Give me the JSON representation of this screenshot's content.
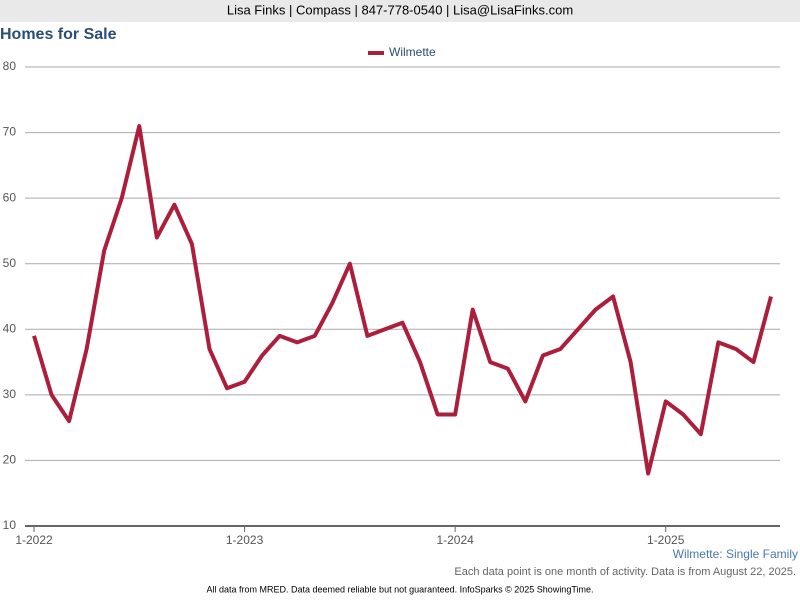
{
  "header": {
    "contact": "Lisa Finks | Compass | 847-778-0540 | Lisa@LisaFinks.com"
  },
  "chart_data": {
    "type": "line",
    "title": "Homes for Sale",
    "categories": [
      "1-2022",
      null,
      null,
      null,
      null,
      null,
      null,
      null,
      null,
      null,
      null,
      null,
      "1-2023",
      null,
      null,
      null,
      null,
      null,
      null,
      null,
      null,
      null,
      null,
      null,
      "1-2024",
      null,
      null,
      null,
      null,
      null,
      null,
      null,
      null,
      null,
      null,
      null,
      "1-2025",
      null,
      null,
      null,
      null,
      null,
      null
    ],
    "series": [
      {
        "name": "Wilmette",
        "color": "#ac1f3c",
        "values": [
          39,
          30,
          26,
          37,
          52,
          60,
          71,
          54,
          59,
          53,
          37,
          31,
          32,
          36,
          39,
          38,
          39,
          44,
          50,
          39,
          40,
          41,
          35,
          27,
          27,
          43,
          35,
          34,
          29,
          36,
          37,
          40,
          43,
          45,
          35,
          18,
          29,
          27,
          24,
          38,
          37,
          35,
          45
        ]
      }
    ],
    "ylim": [
      10,
      80
    ],
    "yticks": [
      10,
      20,
      30,
      40,
      50,
      60,
      70,
      80
    ],
    "grid": true,
    "subtitle": "Wilmette: Single Family",
    "note": "Each data point is one month of activity. Data is from August 22, 2025."
  },
  "footer": {
    "text": "All data from MRED. Data deemed reliable but not guaranteed. InfoSparks © 2025 ShowingTime."
  }
}
